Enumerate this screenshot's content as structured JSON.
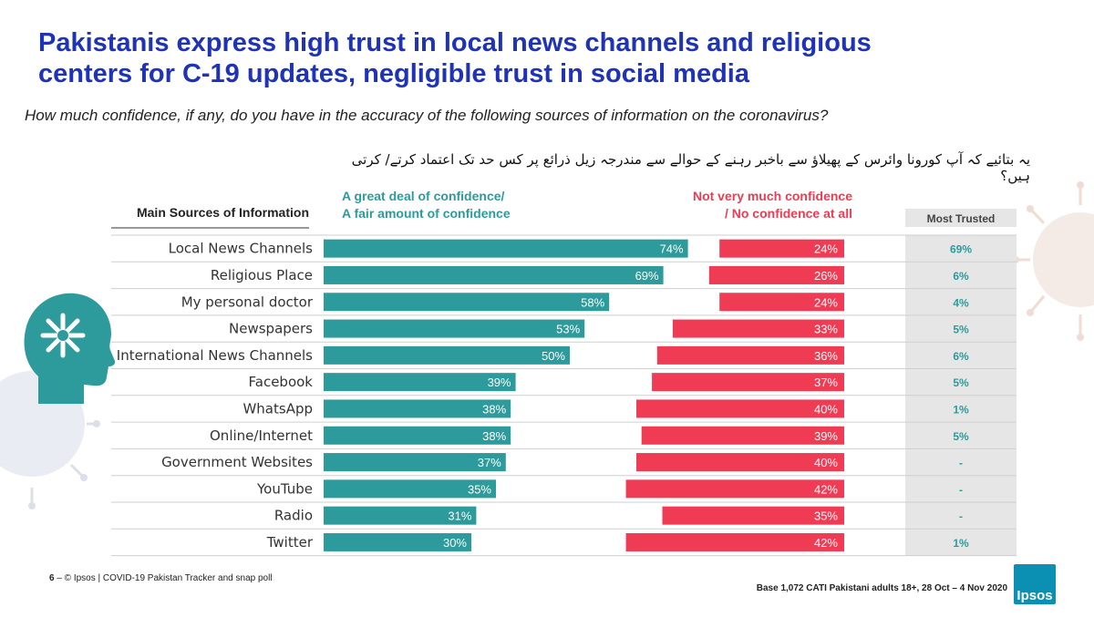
{
  "page": {
    "title_line1": "Pakistanis express high trust in local news channels and religious",
    "title_line2": "centers for C-19 updates, negligible trust in social media",
    "subtitle": "How much confidence, if any, do you have in the accuracy of the following sources of information on the coronavirus?",
    "urdu_question": "یہ بتائیے کہ آپ کورونا وائرس کے پھیلاؤ سے باخبر رہنے کے حوالے سے مندرجہ زیل ذرائع پر کس حد تک اعتماد کرتے/ کرتی ہیں؟",
    "footer_page_number": "6",
    "footer_left": "– © Ipsos | COVID-19 Pakistan Tracker and snap poll",
    "footer_right": "Base 1,072 CATI Pakistani adults 18+, 28 Oct – 4 Nov 2020",
    "logo_text": "Ipsos"
  },
  "colors": {
    "title": "#1f33b8",
    "positive": "#2d9b9b",
    "negative": "#ef3b53",
    "trusted_panel": "#e6e6e6",
    "trusted_text": "#2d9b9b"
  },
  "icons": [
    "head-with-gear-icon",
    "virus-icon"
  ],
  "chart_data": {
    "type": "bar",
    "orientation": "horizontal-diverging",
    "row_header": "Main Sources of Information",
    "series_labels": {
      "positive_line1": "A great deal of confidence/",
      "positive_line2": "A fair amount of confidence",
      "negative_line1": "Not very much confidence",
      "negative_line2": "/ No confidence at all"
    },
    "most_trusted_header": "Most Trusted",
    "categories": [
      "Local News Channels",
      "Religious Place",
      "My personal doctor",
      "Newspapers",
      "International News Channels",
      "Facebook",
      "WhatsApp",
      "Online/Internet",
      "Government Websites",
      "YouTube",
      "Radio",
      "Twitter"
    ],
    "positive": [
      74,
      69,
      58,
      53,
      50,
      39,
      38,
      38,
      37,
      35,
      31,
      30
    ],
    "negative": [
      24,
      26,
      24,
      33,
      36,
      37,
      40,
      39,
      40,
      42,
      35,
      42
    ],
    "most_trusted": [
      "69%",
      "6%",
      "4%",
      "5%",
      "6%",
      "5%",
      "1%",
      "5%",
      "-",
      "-",
      "-",
      "1%"
    ],
    "value_suffix": "%"
  }
}
